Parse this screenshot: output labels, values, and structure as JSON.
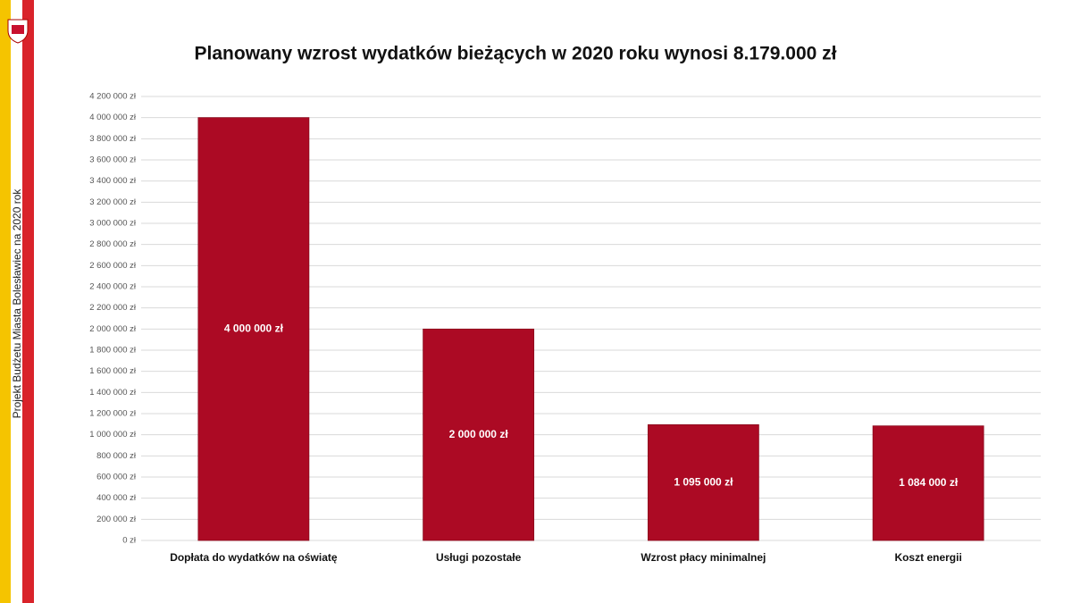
{
  "slide": {
    "side_text": "Projekt Budżetu Miasta Bolesławiec na 2020 rok"
  },
  "chart_data": {
    "type": "bar",
    "title": "Planowany wzrost wydatków bieżących w 2020 roku wynosi 8.179.000 zł",
    "categories": [
      "Dopłata do wydatków na oświatę",
      "Usługi pozostałe",
      "Wzrost płacy minimalnej",
      "Koszt energii"
    ],
    "values": [
      4000000,
      2000000,
      1095000,
      1084000
    ],
    "value_labels": [
      "4 000 000 zł",
      "2 000 000 zł",
      "1 095 000 zł",
      "1 084 000 zł"
    ],
    "color": "#ac0a24",
    "ylim": [
      0,
      4200000
    ],
    "yticks": [
      {
        "value": 0,
        "label": "0 zł"
      },
      {
        "value": 200000,
        "label": "200 000 zł"
      },
      {
        "value": 400000,
        "label": "400 000 zł"
      },
      {
        "value": 600000,
        "label": "600 000 zł"
      },
      {
        "value": 800000,
        "label": "800 000 zł"
      },
      {
        "value": 1000000,
        "label": "1 000 000 zł"
      },
      {
        "value": 1200000,
        "label": "1 200 000 zł"
      },
      {
        "value": 1400000,
        "label": "1 400 000 zł"
      },
      {
        "value": 1600000,
        "label": "1 600 000 zł"
      },
      {
        "value": 1800000,
        "label": "1 800 000 zł"
      },
      {
        "value": 2000000,
        "label": "2 000 000 zł"
      },
      {
        "value": 2200000,
        "label": "2 200 000 zł"
      },
      {
        "value": 2400000,
        "label": "2 400 000 zł"
      },
      {
        "value": 2600000,
        "label": "2 600 000 zł"
      },
      {
        "value": 2800000,
        "label": "2 800 000 zł"
      },
      {
        "value": 3000000,
        "label": "3 000 000 zł"
      },
      {
        "value": 3200000,
        "label": "3 200 000 zł"
      },
      {
        "value": 3400000,
        "label": "3 400 000 zł"
      },
      {
        "value": 3600000,
        "label": "3 600 000 zł"
      },
      {
        "value": 3800000,
        "label": "3 800 000 zł"
      },
      {
        "value": 4000000,
        "label": "4 000 000 zł"
      },
      {
        "value": 4200000,
        "label": "4 200 000 zł"
      }
    ],
    "grid": true
  }
}
